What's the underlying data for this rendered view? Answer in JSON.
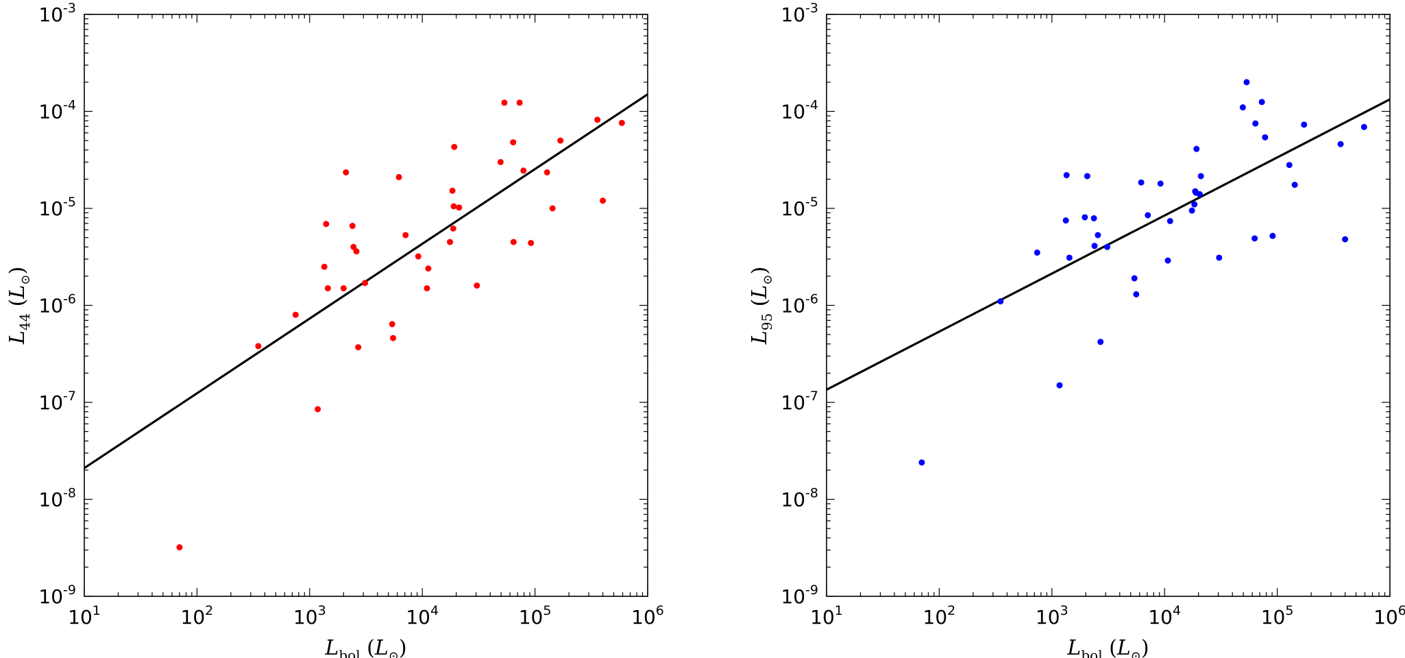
{
  "chart_data": [
    {
      "type": "scatter",
      "xlabel": "L_bol (L_⊙)",
      "ylabel": "L_44 (L_⊙)",
      "xlabel_parts": {
        "main": "L",
        "sub": "bol",
        "unit_open": " (",
        "unit_main": "L",
        "unit_sub": "⊙",
        "unit_close": ")"
      },
      "ylabel_parts": {
        "main": "L",
        "sub": "44",
        "unit_open": " (",
        "unit_main": "L",
        "unit_sub": "⊙",
        "unit_close": ")"
      },
      "xscale": "log",
      "yscale": "log",
      "xlim": [
        10,
        1000000
      ],
      "ylim": [
        1e-09,
        0.001
      ],
      "xtick_labels": [
        {
          "base": "10",
          "exp": "1"
        },
        {
          "base": "10",
          "exp": "2"
        },
        {
          "base": "10",
          "exp": "3"
        },
        {
          "base": "10",
          "exp": "4"
        },
        {
          "base": "10",
          "exp": "5"
        },
        {
          "base": "10",
          "exp": "6"
        }
      ],
      "ytick_labels": [
        {
          "base": "10",
          "exp": "-9"
        },
        {
          "base": "10",
          "exp": "-8"
        },
        {
          "base": "10",
          "exp": "-7"
        },
        {
          "base": "10",
          "exp": "-6"
        },
        {
          "base": "10",
          "exp": "-5"
        },
        {
          "base": "10",
          "exp": "-4"
        },
        {
          "base": "10",
          "exp": "-3"
        }
      ],
      "grid": false,
      "marker_color": "#ff0000",
      "fit_line": {
        "x": [
          10,
          1000000
        ],
        "y": [
          2.1e-08,
          0.00015
        ],
        "color": "#000000"
      },
      "points": [
        [
          70,
          3.2e-09
        ],
        [
          350,
          3.8e-07
        ],
        [
          750,
          8e-07
        ],
        [
          1180,
          8.5e-08
        ],
        [
          1350,
          2.5e-06
        ],
        [
          1400,
          6.9e-06
        ],
        [
          1450,
          1.5e-06
        ],
        [
          2000,
          1.5e-06
        ],
        [
          2100,
          2.35e-05
        ],
        [
          2400,
          6.6e-06
        ],
        [
          2450,
          4e-06
        ],
        [
          2600,
          3.6e-06
        ],
        [
          2700,
          3.7e-07
        ],
        [
          3100,
          1.7e-06
        ],
        [
          5400,
          6.4e-07
        ],
        [
          5500,
          4.6e-07
        ],
        [
          6200,
          2.1e-05
        ],
        [
          7100,
          5.3e-06
        ],
        [
          9200,
          3.2e-06
        ],
        [
          11000,
          1.5e-06
        ],
        [
          11300,
          2.4e-06
        ],
        [
          17600,
          4.5e-06
        ],
        [
          18500,
          1.52e-05
        ],
        [
          18800,
          6.2e-06
        ],
        [
          19000,
          1.05e-05
        ],
        [
          19200,
          4.3e-05
        ],
        [
          21200,
          1.02e-05
        ],
        [
          30500,
          1.6e-06
        ],
        [
          49500,
          3e-05
        ],
        [
          53500,
          0.000123
        ],
        [
          64000,
          4.8e-05
        ],
        [
          64500,
          4.5e-06
        ],
        [
          73000,
          0.000123
        ],
        [
          79000,
          2.45e-05
        ],
        [
          92000,
          4.4e-06
        ],
        [
          128000,
          2.35e-05
        ],
        [
          143000,
          1e-05
        ],
        [
          168000,
          5e-05
        ],
        [
          358000,
          8.2e-05
        ],
        [
          400000,
          1.2e-05
        ],
        [
          590000,
          7.6e-05
        ]
      ]
    },
    {
      "type": "scatter",
      "xlabel": "L_bol (L_⊙)",
      "ylabel": "L_95 (L_⊙)",
      "xlabel_parts": {
        "main": "L",
        "sub": "bol",
        "unit_open": " (",
        "unit_main": "L",
        "unit_sub": "⊙",
        "unit_close": ")"
      },
      "ylabel_parts": {
        "main": "L",
        "sub": "95",
        "unit_open": " (",
        "unit_main": "L",
        "unit_sub": "⊙",
        "unit_close": ")"
      },
      "xscale": "log",
      "yscale": "log",
      "xlim": [
        10,
        1000000
      ],
      "ylim": [
        1e-09,
        0.001
      ],
      "xtick_labels": [
        {
          "base": "10",
          "exp": "1"
        },
        {
          "base": "10",
          "exp": "2"
        },
        {
          "base": "10",
          "exp": "3"
        },
        {
          "base": "10",
          "exp": "4"
        },
        {
          "base": "10",
          "exp": "5"
        },
        {
          "base": "10",
          "exp": "6"
        }
      ],
      "ytick_labels": [
        {
          "base": "10",
          "exp": "-9"
        },
        {
          "base": "10",
          "exp": "-8"
        },
        {
          "base": "10",
          "exp": "-7"
        },
        {
          "base": "10",
          "exp": "-6"
        },
        {
          "base": "10",
          "exp": "-5"
        },
        {
          "base": "10",
          "exp": "-4"
        },
        {
          "base": "10",
          "exp": "-3"
        }
      ],
      "grid": false,
      "marker_color": "#0000ff",
      "fit_line": {
        "x": [
          10,
          1000000
        ],
        "y": [
          1.35e-07,
          0.000133
        ],
        "color": "#000000"
      },
      "points": [
        [
          70,
          2.4e-08
        ],
        [
          350,
          1.1e-06
        ],
        [
          740,
          3.5e-06
        ],
        [
          1170,
          1.5e-07
        ],
        [
          1330,
          7.5e-06
        ],
        [
          1350,
          2.2e-05
        ],
        [
          1430,
          3.1e-06
        ],
        [
          1960,
          8.1e-06
        ],
        [
          2060,
          2.15e-05
        ],
        [
          2360,
          7.9e-06
        ],
        [
          2390,
          4.1e-06
        ],
        [
          2560,
          5.3e-06
        ],
        [
          2700,
          4.2e-07
        ],
        [
          3100,
          4e-06
        ],
        [
          5400,
          1.9e-06
        ],
        [
          5600,
          1.3e-06
        ],
        [
          6200,
          1.85e-05
        ],
        [
          7100,
          8.5e-06
        ],
        [
          9200,
          1.8e-05
        ],
        [
          10700,
          2.9e-06
        ],
        [
          11200,
          7.4e-06
        ],
        [
          17500,
          9.5e-06
        ],
        [
          18400,
          1.1e-05
        ],
        [
          18700,
          1.5e-05
        ],
        [
          19000,
          1.45e-05
        ],
        [
          19200,
          4.1e-05
        ],
        [
          20500,
          1.4e-05
        ],
        [
          21000,
          2.15e-05
        ],
        [
          30500,
          3.1e-06
        ],
        [
          49500,
          0.00011
        ],
        [
          53500,
          0.0002
        ],
        [
          63000,
          4.9e-06
        ],
        [
          64000,
          7.5e-05
        ],
        [
          73000,
          0.000125
        ],
        [
          78000,
          5.4e-05
        ],
        [
          91000,
          5.2e-06
        ],
        [
          128000,
          2.8e-05
        ],
        [
          143000,
          1.75e-05
        ],
        [
          173000,
          7.3e-05
        ],
        [
          365000,
          4.6e-05
        ],
        [
          400000,
          4.8e-06
        ],
        [
          590000,
          6.9e-05
        ]
      ]
    }
  ]
}
